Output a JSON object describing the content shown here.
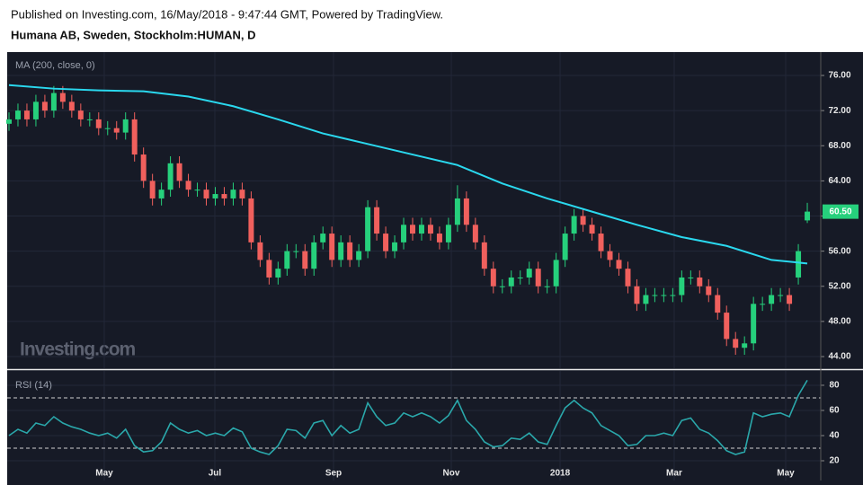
{
  "chart_data": {
    "type": "candlestick",
    "subtitle": "Published on Investing.com, 16/May/2018 - 9:47:44 GMT, Powered by TradingView.",
    "title": "Humana AB, Sweden, Stockholm:HUMAN, D",
    "watermark": "Investing.com",
    "grid": true,
    "up_color": "#26d07c",
    "down_color": "#f0605d",
    "xlim": [
      -0.2,
      90.5
    ],
    "xticks": [
      {
        "value": 10.62,
        "label": "May"
      },
      {
        "value": 22.95,
        "label": "Jul"
      },
      {
        "value": 36.18,
        "label": "Sep"
      },
      {
        "value": 49.31,
        "label": "Nov"
      },
      {
        "value": 61.44,
        "label": "2018"
      },
      {
        "value": 74.16,
        "label": "Mar"
      },
      {
        "value": 86.59,
        "label": "May"
      }
    ],
    "ylim": [
      42.67,
      78.66
    ],
    "yticks": [
      {
        "value": 44,
        "label": "44.00"
      },
      {
        "value": 48,
        "label": "48.00"
      },
      {
        "value": 52,
        "label": "52.00"
      },
      {
        "value": 56,
        "label": "56.00"
      },
      {
        "value": 60,
        "label": "60.00"
      },
      {
        "value": 64,
        "label": "64.00"
      },
      {
        "value": 68,
        "label": "68.00"
      },
      {
        "value": 72,
        "label": "72.00"
      },
      {
        "value": 76,
        "label": "76.00"
      }
    ],
    "open": [
      70.5,
      71,
      72,
      71,
      73,
      72,
      74,
      73,
      72,
      71,
      71,
      70,
      70,
      69.5,
      71,
      67,
      64,
      62,
      63,
      66,
      64,
      63,
      63,
      62,
      62.5,
      62,
      63,
      62,
      57,
      55,
      53,
      54,
      56,
      56,
      54,
      57,
      58,
      55,
      57,
      55,
      56,
      61,
      58,
      56,
      57,
      59,
      58,
      59,
      58,
      57,
      59,
      62,
      59,
      57,
      54,
      52,
      52,
      53,
      53,
      54,
      52,
      52,
      55,
      58,
      60,
      59,
      58,
      56,
      55,
      54,
      52,
      50,
      51,
      51,
      51,
      51,
      53,
      53,
      52,
      51,
      49,
      46,
      45,
      45.5,
      50,
      50,
      51,
      51,
      53,
      59.5
    ],
    "high": [
      71.8,
      72.8,
      72.8,
      73.8,
      73.8,
      74.8,
      74.8,
      73.8,
      72.8,
      71.8,
      71.8,
      70.8,
      70.8,
      71.8,
      71.8,
      67.8,
      64.8,
      63.8,
      66.8,
      66.8,
      64.8,
      63.8,
      63.8,
      63.3,
      63.3,
      63.8,
      63.8,
      62.8,
      57.8,
      55.8,
      54.8,
      56.8,
      56.8,
      56.8,
      57.8,
      58.8,
      58.8,
      57.8,
      57.8,
      56.8,
      61.8,
      61.8,
      58.8,
      57.8,
      59.8,
      59.8,
      59.8,
      59.8,
      58.8,
      59.8,
      63.5,
      62.8,
      59.8,
      57.8,
      54.8,
      52.8,
      53.8,
      53.8,
      54.8,
      54.8,
      52.8,
      55.8,
      58.8,
      60.8,
      60.8,
      59.8,
      58.8,
      56.8,
      55.8,
      54.8,
      52.8,
      51.8,
      51.8,
      51.8,
      51.8,
      53.8,
      53.8,
      53.8,
      52.8,
      51.8,
      49.8,
      46.8,
      46.3,
      50.8,
      50.8,
      51.8,
      51.8,
      51.8,
      56.8,
      61.5
    ],
    "low": [
      69.7,
      70.2,
      70.2,
      70.2,
      71.2,
      71.2,
      72.2,
      71.2,
      70.2,
      70.2,
      69.2,
      69.2,
      68.7,
      68.7,
      66.2,
      63.2,
      61.2,
      61.2,
      62.2,
      63.2,
      62.2,
      62.2,
      61.2,
      61.2,
      61.2,
      61.2,
      61.2,
      56.2,
      54.2,
      52.2,
      52.2,
      53.2,
      55.2,
      53.2,
      53.2,
      56.2,
      54.2,
      54.2,
      54.2,
      54.2,
      55.2,
      57.2,
      55.2,
      55.2,
      56.2,
      57.2,
      57.2,
      57.2,
      56.2,
      56.2,
      58.2,
      58.2,
      56.2,
      53.2,
      51.2,
      51.2,
      51.2,
      52.2,
      52.2,
      51.2,
      51.2,
      51.2,
      54.2,
      57.2,
      58.2,
      57.2,
      55.2,
      54.2,
      53.2,
      51.2,
      49.2,
      49.2,
      50.2,
      50.2,
      50.2,
      50.2,
      52.2,
      51.2,
      50.2,
      48.2,
      45.2,
      44.2,
      44.2,
      44.7,
      49.2,
      49.2,
      50.2,
      49.2,
      52.2,
      59.2
    ],
    "close": [
      71,
      72,
      71,
      73,
      72,
      74,
      73,
      72,
      71,
      71,
      70,
      70,
      69.5,
      71,
      67,
      64,
      62,
      63,
      66,
      64,
      63,
      63,
      62,
      62.5,
      62,
      63,
      62,
      57,
      55,
      53,
      54,
      56,
      56,
      54,
      57,
      58,
      55,
      57,
      55,
      56,
      61,
      58,
      56,
      57,
      59,
      58,
      59,
      58,
      57,
      59,
      62,
      59,
      57,
      54,
      52,
      52,
      53,
      53,
      54,
      52,
      52,
      55,
      58,
      60,
      59,
      58,
      56,
      55,
      54,
      52,
      50,
      51,
      51,
      51,
      51,
      53,
      53,
      52,
      51,
      49,
      46,
      45,
      45.5,
      50,
      50,
      51,
      51,
      50,
      56,
      60.5
    ],
    "last_label": {
      "value": 60.5,
      "label": "60.50"
    },
    "ma": {
      "name": "MA (200, close, 0)",
      "color": "#2ad8ee",
      "x": [
        0,
        5,
        10,
        15,
        20,
        25,
        30,
        35,
        40,
        45,
        50,
        55,
        60,
        65,
        70,
        75,
        80,
        85,
        89
      ],
      "values": [
        74.9,
        74.5,
        74.3,
        74.2,
        73.6,
        72.5,
        71.0,
        69.4,
        68.2,
        67.0,
        65.8,
        63.7,
        62.0,
        60.5,
        59.0,
        57.6,
        56.6,
        55.0,
        54.6
      ]
    },
    "rsi": {
      "name": "RSI (14)",
      "color": "#2aa7aa",
      "ylim": [
        4.3,
        91.4
      ],
      "yticks": [
        20,
        40,
        60,
        80
      ],
      "bands": [
        30,
        70
      ],
      "values": [
        40,
        45,
        42,
        50,
        48,
        55,
        50,
        47,
        45,
        42,
        40,
        42,
        38,
        45,
        32,
        27,
        28,
        35,
        50,
        45,
        42,
        44,
        40,
        42,
        40,
        46,
        43,
        30,
        27,
        25,
        32,
        45,
        44,
        38,
        50,
        52,
        40,
        48,
        42,
        45,
        66,
        55,
        48,
        50,
        58,
        55,
        58,
        55,
        50,
        56,
        68,
        52,
        45,
        35,
        31,
        32,
        38,
        37,
        42,
        35,
        33,
        48,
        62,
        68,
        62,
        58,
        48,
        44,
        40,
        32,
        33,
        40,
        40,
        42,
        40,
        52,
        54,
        45,
        42,
        36,
        28,
        25,
        27,
        58,
        55,
        57,
        58,
        55,
        72,
        84
      ]
    }
  }
}
